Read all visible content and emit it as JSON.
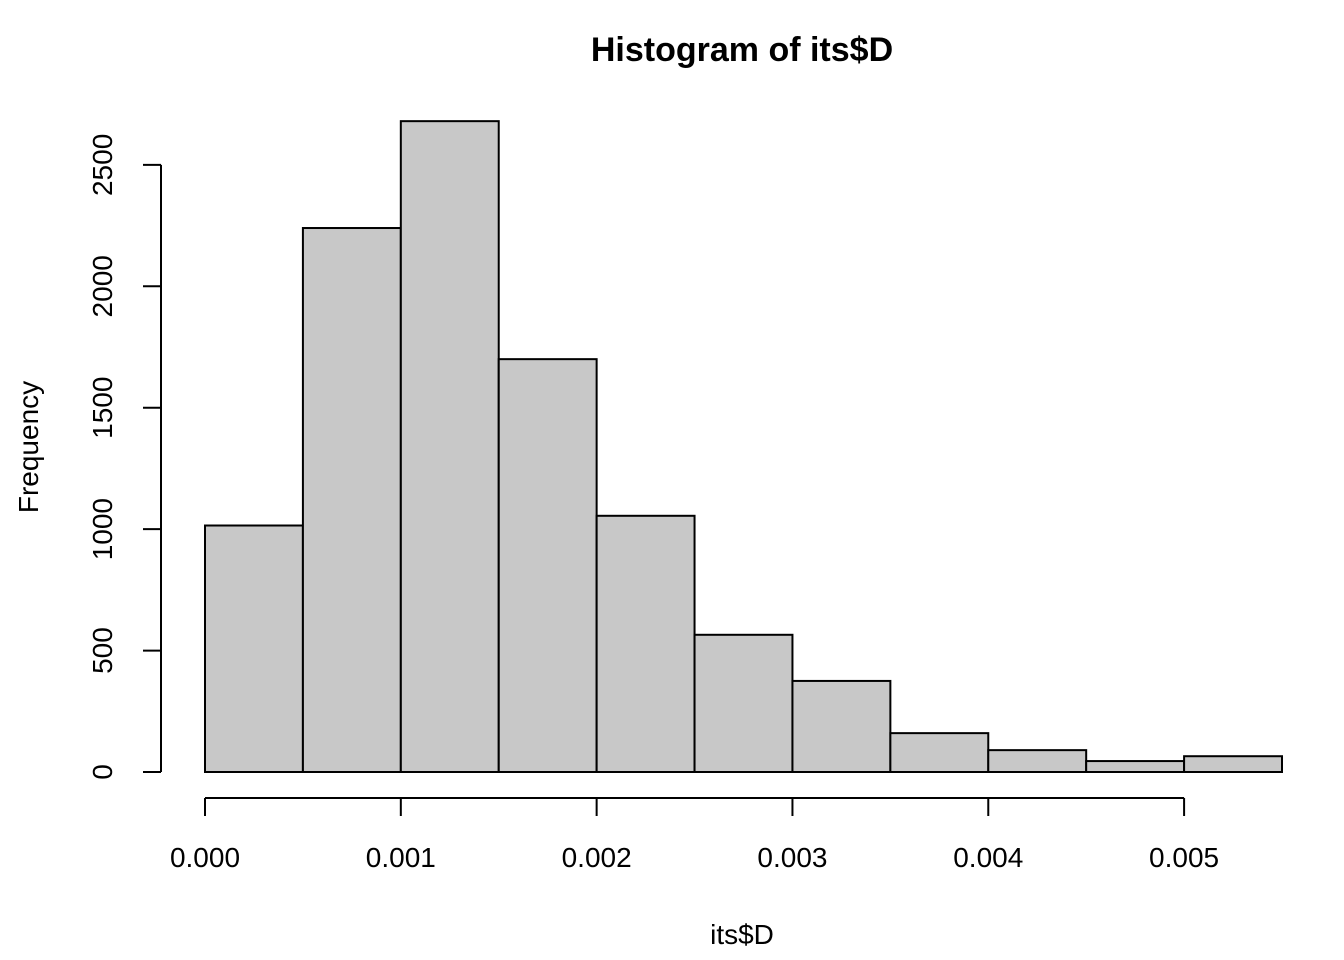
{
  "chart_data": {
    "type": "bar",
    "title": "Histogram of its$D",
    "xlabel": "its$D",
    "ylabel": "Frequency",
    "bins": [
      {
        "from": 0.0,
        "to": 0.0005,
        "count": 1015
      },
      {
        "from": 0.0005,
        "to": 0.001,
        "count": 2240
      },
      {
        "from": 0.001,
        "to": 0.0015,
        "count": 2680
      },
      {
        "from": 0.0015,
        "to": 0.002,
        "count": 1700
      },
      {
        "from": 0.002,
        "to": 0.0025,
        "count": 1055
      },
      {
        "from": 0.0025,
        "to": 0.003,
        "count": 565
      },
      {
        "from": 0.003,
        "to": 0.0035,
        "count": 375
      },
      {
        "from": 0.0035,
        "to": 0.004,
        "count": 160
      },
      {
        "from": 0.004,
        "to": 0.0045,
        "count": 90
      },
      {
        "from": 0.0045,
        "to": 0.005,
        "count": 45
      },
      {
        "from": 0.005,
        "to": 0.0055,
        "count": 65
      }
    ],
    "xlim": [
      0,
      0.0055
    ],
    "ylim": [
      0,
      2700
    ],
    "x_ticks": [
      {
        "value": 0.0,
        "label": "0.000"
      },
      {
        "value": 0.001,
        "label": "0.001"
      },
      {
        "value": 0.002,
        "label": "0.002"
      },
      {
        "value": 0.003,
        "label": "0.003"
      },
      {
        "value": 0.004,
        "label": "0.004"
      },
      {
        "value": 0.005,
        "label": "0.005"
      }
    ],
    "y_ticks": [
      {
        "value": 0,
        "label": "0"
      },
      {
        "value": 500,
        "label": "500"
      },
      {
        "value": 1000,
        "label": "1000"
      },
      {
        "value": 1500,
        "label": "1500"
      },
      {
        "value": 2000,
        "label": "2000"
      },
      {
        "value": 2500,
        "label": "2500"
      }
    ],
    "grid": false,
    "colors": {
      "bar_fill": "#c8c8c8",
      "bar_stroke": "#000000"
    }
  }
}
